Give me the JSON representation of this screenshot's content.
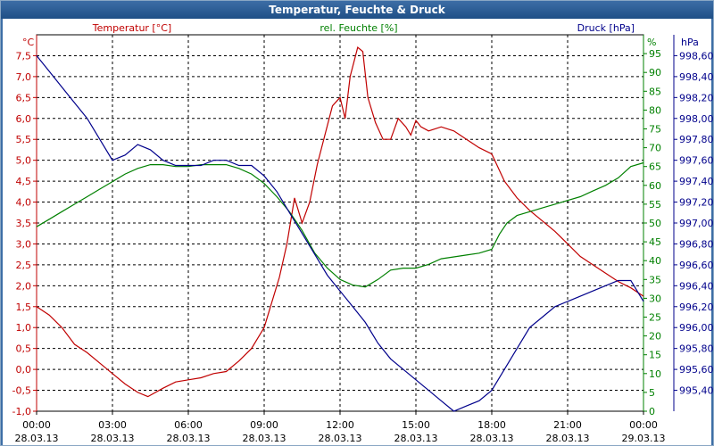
{
  "window": {
    "title": "Temperatur, Feuchte & Druck"
  },
  "colors": {
    "temperature": "#c00000",
    "humidity": "#008000",
    "pressure": "#00008b",
    "grid": "#000000"
  },
  "chart_data": {
    "type": "line",
    "grid": true,
    "x_ticks": [
      {
        "time": "00:00",
        "date": "28.03.13"
      },
      {
        "time": "03:00",
        "date": "28.03.13"
      },
      {
        "time": "06:00",
        "date": "28.03.13"
      },
      {
        "time": "09:00",
        "date": "28.03.13"
      },
      {
        "time": "12:00",
        "date": "28.03.13"
      },
      {
        "time": "15:00",
        "date": "28.03.13"
      },
      {
        "time": "18:00",
        "date": "28.03.13"
      },
      {
        "time": "21:00",
        "date": "28.03.13"
      },
      {
        "time": "00:00",
        "date": "29.03.13"
      }
    ],
    "axes": {
      "temperature": {
        "unit": "°C",
        "ylim": [
          -1.0,
          8.0
        ],
        "ticks": [
          "7,5",
          "7,0",
          "6,5",
          "6,0",
          "5,5",
          "5,0",
          "4,5",
          "4,0",
          "3,5",
          "3,0",
          "2,5",
          "2,0",
          "1,5",
          "1,0",
          "0,5",
          "0,0",
          "-0,5",
          "-1,0"
        ]
      },
      "humidity": {
        "unit": "%",
        "ylim": [
          0,
          100
        ],
        "ticks": [
          "95",
          "90",
          "85",
          "80",
          "75",
          "70",
          "65",
          "60",
          "55",
          "50",
          "45",
          "40",
          "35",
          "30",
          "25",
          "20",
          "15",
          "10",
          "5",
          "0"
        ]
      },
      "pressure": {
        "unit": "hPa",
        "ylim": [
          995.2,
          998.8
        ],
        "ticks": [
          "998,60",
          "998,40",
          "998,20",
          "998,00",
          "997,80",
          "997,60",
          "997,40",
          "997,20",
          "997,00",
          "996,80",
          "996,60",
          "996,40",
          "996,20",
          "996,00",
          "995,80",
          "995,60",
          "995,40"
        ]
      }
    },
    "series": [
      {
        "name": "Temperatur [°C]",
        "axis": "temperature",
        "points": [
          [
            0,
            1.5
          ],
          [
            0.5,
            1.3
          ],
          [
            1,
            1.0
          ],
          [
            1.5,
            0.6
          ],
          [
            2,
            0.4
          ],
          [
            2.5,
            0.15
          ],
          [
            3,
            -0.1
          ],
          [
            3.5,
            -0.35
          ],
          [
            4,
            -0.55
          ],
          [
            4.4,
            -0.65
          ],
          [
            5,
            -0.45
          ],
          [
            5.5,
            -0.3
          ],
          [
            6,
            -0.25
          ],
          [
            6.5,
            -0.2
          ],
          [
            7,
            -0.1
          ],
          [
            7.5,
            -0.05
          ],
          [
            8,
            0.2
          ],
          [
            8.5,
            0.5
          ],
          [
            9,
            1.0
          ],
          [
            9.3,
            1.6
          ],
          [
            9.6,
            2.2
          ],
          [
            9.9,
            3.0
          ],
          [
            10.2,
            4.1
          ],
          [
            10.5,
            3.5
          ],
          [
            10.8,
            4.0
          ],
          [
            11.1,
            4.9
          ],
          [
            11.4,
            5.6
          ],
          [
            11.7,
            6.3
          ],
          [
            12,
            6.5
          ],
          [
            12.2,
            6.0
          ],
          [
            12.4,
            7.0
          ],
          [
            12.7,
            7.7
          ],
          [
            12.9,
            7.6
          ],
          [
            13.1,
            6.5
          ],
          [
            13.4,
            5.9
          ],
          [
            13.7,
            5.5
          ],
          [
            14,
            5.5
          ],
          [
            14.3,
            6.0
          ],
          [
            14.6,
            5.8
          ],
          [
            14.8,
            5.6
          ],
          [
            15,
            5.95
          ],
          [
            15.2,
            5.8
          ],
          [
            15.5,
            5.7
          ],
          [
            16,
            5.8
          ],
          [
            16.5,
            5.7
          ],
          [
            17,
            5.5
          ],
          [
            17.5,
            5.3
          ],
          [
            18,
            5.15
          ],
          [
            18.5,
            4.5
          ],
          [
            19,
            4.1
          ],
          [
            19.5,
            3.8
          ],
          [
            20,
            3.55
          ],
          [
            20.5,
            3.3
          ],
          [
            21,
            3.0
          ],
          [
            21.5,
            2.7
          ],
          [
            22,
            2.5
          ],
          [
            22.5,
            2.3
          ],
          [
            23,
            2.1
          ],
          [
            23.5,
            1.95
          ],
          [
            24,
            1.75
          ]
        ]
      },
      {
        "name": "rel. Feuchte [%]",
        "axis": "humidity",
        "points": [
          [
            0,
            49
          ],
          [
            0.5,
            51
          ],
          [
            1,
            53
          ],
          [
            1.5,
            55
          ],
          [
            2,
            57
          ],
          [
            2.5,
            59
          ],
          [
            3,
            61
          ],
          [
            3.5,
            63
          ],
          [
            4,
            64.5
          ],
          [
            4.5,
            65.5
          ],
          [
            5,
            65.5
          ],
          [
            5.5,
            65
          ],
          [
            6,
            65
          ],
          [
            6.5,
            65.5
          ],
          [
            7,
            65.5
          ],
          [
            7.5,
            65.5
          ],
          [
            8,
            64.5
          ],
          [
            8.5,
            63
          ],
          [
            9,
            60.5
          ],
          [
            9.5,
            57
          ],
          [
            10,
            53
          ],
          [
            10.5,
            48
          ],
          [
            11,
            42
          ],
          [
            11.5,
            38
          ],
          [
            12,
            35
          ],
          [
            12.5,
            33.5
          ],
          [
            13,
            33
          ],
          [
            13.5,
            35
          ],
          [
            14,
            37.5
          ],
          [
            14.5,
            38
          ],
          [
            15,
            38
          ],
          [
            15.5,
            39
          ],
          [
            16,
            40.5
          ],
          [
            16.5,
            41
          ],
          [
            17,
            41.5
          ],
          [
            17.5,
            42
          ],
          [
            18,
            43
          ],
          [
            18.3,
            47
          ],
          [
            18.6,
            50
          ],
          [
            19,
            52
          ],
          [
            19.5,
            53
          ],
          [
            20,
            54
          ],
          [
            20.5,
            55
          ],
          [
            21,
            56
          ],
          [
            21.5,
            57
          ],
          [
            22,
            58.5
          ],
          [
            22.5,
            60
          ],
          [
            23,
            62
          ],
          [
            23.5,
            65
          ],
          [
            24,
            66
          ]
        ]
      },
      {
        "name": "Druck [hPa]",
        "axis": "pressure",
        "points": [
          [
            0,
            998.6
          ],
          [
            0.5,
            998.45
          ],
          [
            1,
            998.3
          ],
          [
            1.5,
            998.15
          ],
          [
            2,
            998.0
          ],
          [
            2.5,
            997.8
          ],
          [
            3,
            997.6
          ],
          [
            3.5,
            997.65
          ],
          [
            4,
            997.75
          ],
          [
            4.5,
            997.7
          ],
          [
            5,
            997.6
          ],
          [
            5.5,
            997.55
          ],
          [
            6,
            997.55
          ],
          [
            6.5,
            997.55
          ],
          [
            7,
            997.6
          ],
          [
            7.5,
            997.6
          ],
          [
            8,
            997.55
          ],
          [
            8.5,
            997.55
          ],
          [
            9,
            997.45
          ],
          [
            9.5,
            997.3
          ],
          [
            10,
            997.1
          ],
          [
            10.5,
            996.9
          ],
          [
            11,
            996.7
          ],
          [
            11.5,
            996.5
          ],
          [
            12,
            996.35
          ],
          [
            12.5,
            996.2
          ],
          [
            13,
            996.05
          ],
          [
            13.5,
            995.85
          ],
          [
            14,
            995.7
          ],
          [
            14.5,
            995.6
          ],
          [
            15,
            995.5
          ],
          [
            15.5,
            995.4
          ],
          [
            16,
            995.3
          ],
          [
            16.5,
            995.2
          ],
          [
            17,
            995.25
          ],
          [
            17.5,
            995.3
          ],
          [
            18,
            995.4
          ],
          [
            18.5,
            995.6
          ],
          [
            19,
            995.8
          ],
          [
            19.5,
            996.0
          ],
          [
            20,
            996.1
          ],
          [
            20.5,
            996.2
          ],
          [
            21,
            996.25
          ],
          [
            21.5,
            996.3
          ],
          [
            22,
            996.35
          ],
          [
            22.5,
            996.4
          ],
          [
            23,
            996.45
          ],
          [
            23.5,
            996.45
          ],
          [
            24,
            996.25
          ]
        ]
      }
    ],
    "legend": [
      {
        "label": "Temperatur [°C]",
        "series": "temperature"
      },
      {
        "label": "rel. Feuchte [%]",
        "series": "humidity"
      },
      {
        "label": "Druck [hPa]",
        "series": "pressure"
      }
    ]
  }
}
